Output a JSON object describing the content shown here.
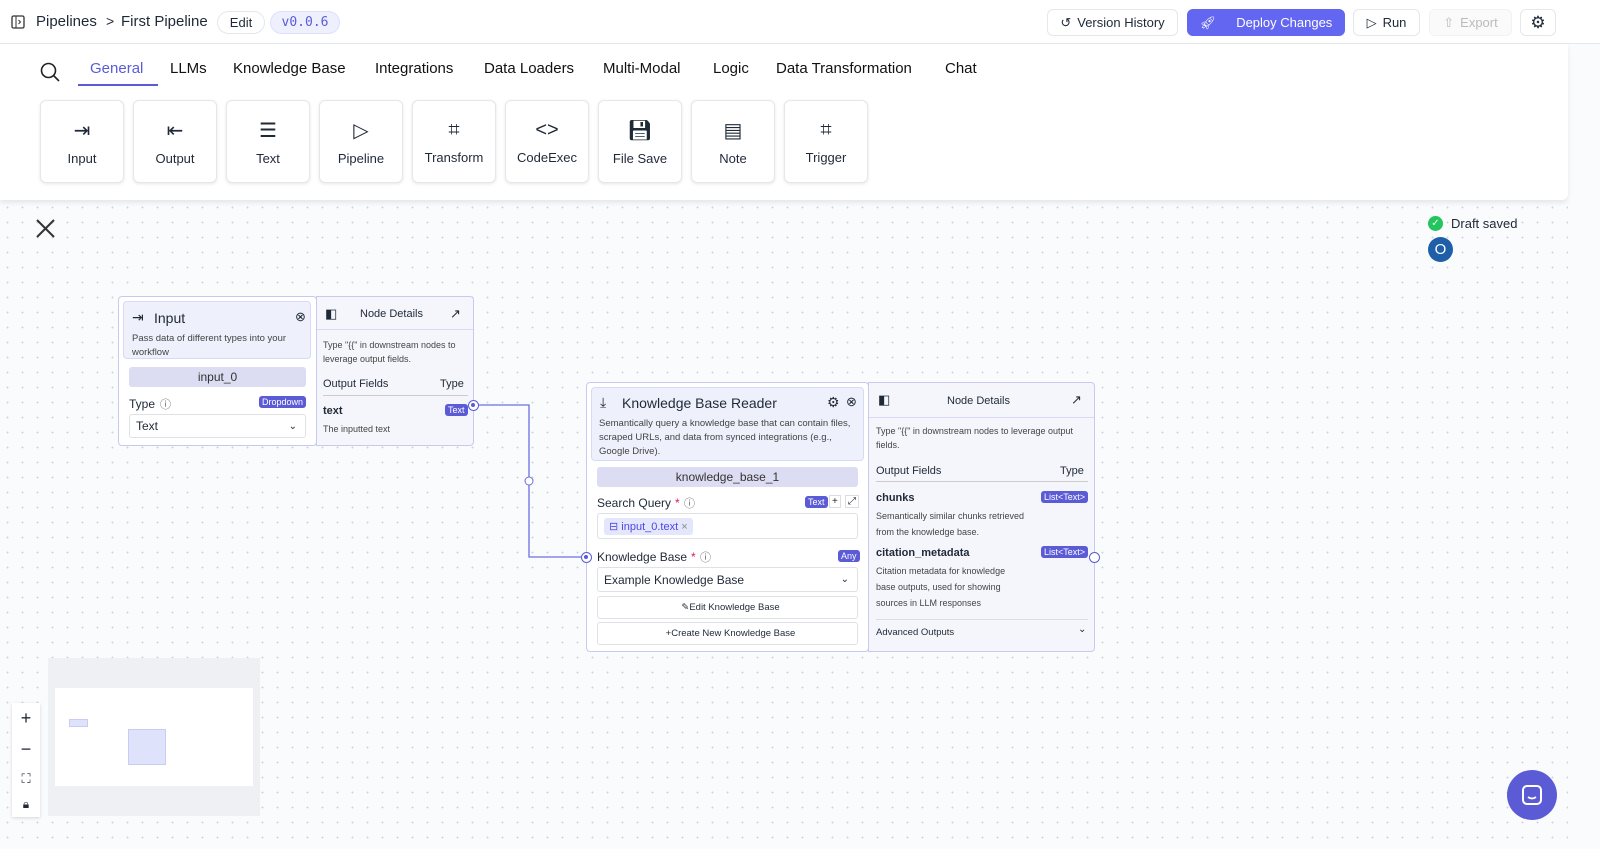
{
  "header": {
    "breadcrumb_root": "Pipelines",
    "separator": ">",
    "pipeline_name": "First Pipeline",
    "edit_label": "Edit",
    "version": "v0.0.6",
    "version_history": "Version History",
    "deploy": "Deploy Changes",
    "run": "Run",
    "export": "Export"
  },
  "toolbar": {
    "tabs": [
      "General",
      "LLMs",
      "Knowledge Base",
      "Integrations",
      "Data Loaders",
      "Multi-Modal",
      "Logic",
      "Data Transformation",
      "Chat"
    ],
    "active_tab": "General",
    "tiles": [
      "Input",
      "Output",
      "Text",
      "Pipeline",
      "Transform",
      "CodeExec",
      "File Save",
      "Note",
      "Trigger"
    ]
  },
  "status": {
    "draft": "Draft saved",
    "avatar": "O"
  },
  "input_node": {
    "title": "Input",
    "description": "Pass data of different types into your workflow",
    "name": "input_0",
    "type_label": "Type",
    "type_badge": "Dropdown",
    "type_value": "Text",
    "details": {
      "title": "Node Details",
      "hint": "Type \"{{\" in downstream nodes to leverage output fields.",
      "col_fields": "Output Fields",
      "col_type": "Type",
      "fields": [
        {
          "name": "text",
          "type": "Text",
          "description": "The inputted text"
        }
      ]
    }
  },
  "kb_node": {
    "title": "Knowledge Base Reader",
    "description": "Semantically query a knowledge base that can contain files, scraped URLs, and data from synced integrations (e.g., Google Drive).",
    "name": "knowledge_base_1",
    "search_label": "Search Query",
    "search_badge": "Text",
    "search_value": "input_0.text",
    "kb_label": "Knowledge Base",
    "kb_badge": "Any",
    "kb_value": "Example Knowledge Base",
    "required_mark": "*",
    "edit_kb": "Edit Knowledge Base",
    "create_kb": "Create New Knowledge Base",
    "details": {
      "title": "Node Details",
      "hint": "Type \"{{\" in downstream nodes to leverage output fields.",
      "col_fields": "Output Fields",
      "col_type": "Type",
      "fields": [
        {
          "name": "chunks",
          "type": "List<Text>",
          "description": "Semantically similar chunks retrieved from the knowledge base."
        },
        {
          "name": "citation_metadata",
          "type": "List<Text>",
          "description": "Citation metadata for knowledge base outputs, used for showing sources in LLM responses"
        }
      ],
      "advanced": "Advanced Outputs"
    }
  },
  "colors": {
    "accent": "#5b5bd6",
    "success": "#22c55e",
    "avatar": "#1e5fa8"
  }
}
